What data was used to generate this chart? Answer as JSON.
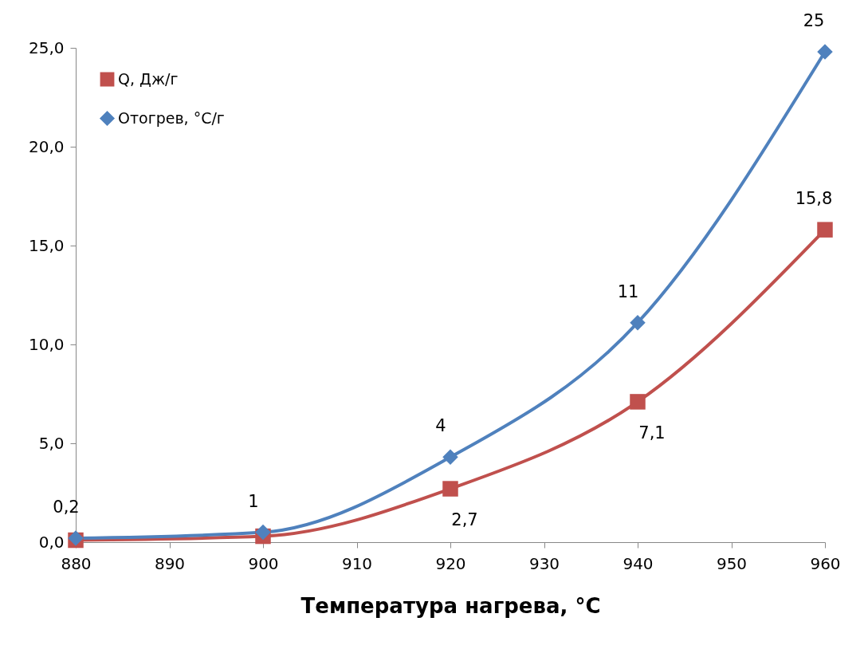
{
  "chart_data": {
    "type": "line",
    "xlabel": "Температура нагрева, °С",
    "x": [
      880,
      900,
      920,
      940,
      960
    ],
    "series": [
      {
        "name": "Q, Дж/г",
        "color": "#c0504d",
        "marker": "square",
        "values": [
          0.1,
          0.3,
          2.7,
          7.1,
          15.8
        ],
        "value_labels": [
          null,
          null,
          "2,7",
          "7,1",
          "15,8"
        ]
      },
      {
        "name": "Отогрев, °С/г",
        "color": "#4f81bd",
        "marker": "diamond",
        "values": [
          0.2,
          0.5,
          4.3,
          11.1,
          24.8
        ],
        "value_labels": [
          "0,2",
          "1",
          "4",
          "11",
          "25"
        ]
      }
    ],
    "xlim": [
      880,
      960
    ],
    "xticks": [
      880,
      890,
      900,
      910,
      920,
      930,
      940,
      950,
      960
    ],
    "ylim": [
      0,
      25
    ],
    "yticks": [
      {
        "value": 0,
        "label": "0,0"
      },
      {
        "value": 5,
        "label": "5,0"
      },
      {
        "value": 10,
        "label": "10,0"
      },
      {
        "value": 15,
        "label": "15,0"
      },
      {
        "value": 20,
        "label": "20,0"
      },
      {
        "value": 25,
        "label": "25,0"
      }
    ],
    "grid": false,
    "legend": "top left"
  }
}
